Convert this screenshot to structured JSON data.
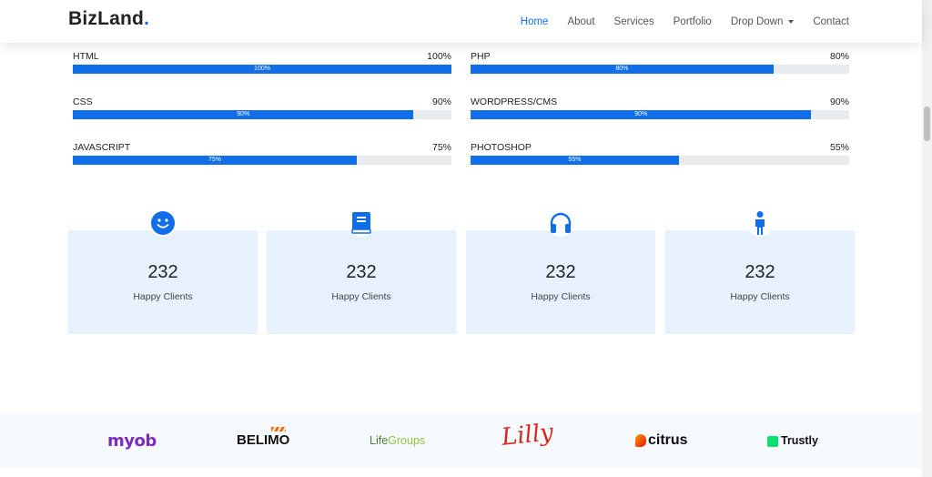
{
  "header": {
    "logo_text": "BizLand",
    "logo_dot": ".",
    "nav": [
      {
        "label": "Home",
        "active": true
      },
      {
        "label": "About"
      },
      {
        "label": "Services"
      },
      {
        "label": "Portfolio"
      },
      {
        "label": "Drop Down",
        "dropdown": true
      },
      {
        "label": "Contact"
      }
    ]
  },
  "skills": [
    {
      "name": "HTML",
      "value": "100%",
      "fill_label": "100%",
      "percent": 100
    },
    {
      "name": "PHP",
      "value": "80%",
      "fill_label": "80%",
      "percent": 80
    },
    {
      "name": "CSS",
      "value": "90%",
      "fill_label": "90%",
      "percent": 90
    },
    {
      "name": "WORDPRESS/CMS",
      "value": "90%",
      "fill_label": "90%",
      "percent": 90
    },
    {
      "name": "JAVASCRIPT",
      "value": "75%",
      "fill_label": "75%",
      "percent": 75
    },
    {
      "name": "PHOTOSHOP",
      "value": "55%",
      "fill_label": "55%",
      "percent": 55
    }
  ],
  "counts": [
    {
      "icon": "smile-icon",
      "number": "232",
      "label": "Happy Clients"
    },
    {
      "icon": "book-icon",
      "number": "232",
      "label": "Happy Clients"
    },
    {
      "icon": "headphones-icon",
      "number": "232",
      "label": "Happy Clients"
    },
    {
      "icon": "person-icon",
      "number": "232",
      "label": "Happy Clients"
    }
  ],
  "clients": {
    "myob": "myob",
    "belimo": "BELIMO",
    "lifegroups_life": "Life",
    "lifegroups_groups": "Groups",
    "lilly": "Lilly",
    "citrus": "citrus",
    "trustly": "Trustly"
  },
  "colors": {
    "accent": "#106eea",
    "count_bg": "#e7f1fd",
    "clients_bg": "#f6f9fe"
  }
}
